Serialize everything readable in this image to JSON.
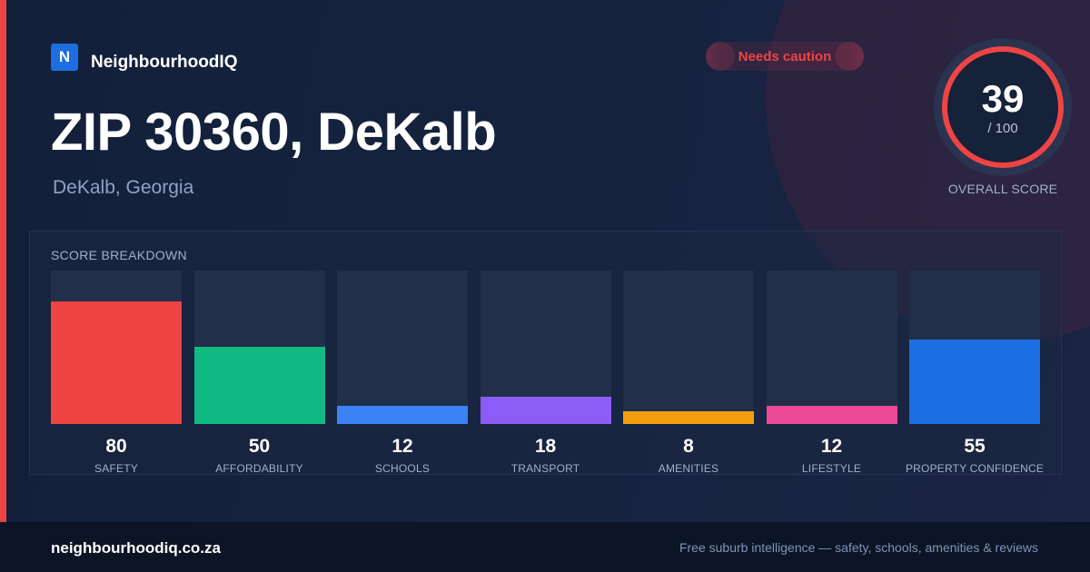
{
  "brand": {
    "logo_letter": "N",
    "name": "NeighbourhoodIQ"
  },
  "status_badge": {
    "label": "Needs caution",
    "color": "#ef4444"
  },
  "header": {
    "title": "ZIP 30360, DeKalb",
    "subtitle": "DeKalb, Georgia"
  },
  "overall_score": {
    "value": "39",
    "max_label": "/ 100",
    "label": "OVERALL SCORE",
    "ring_color": "#ef4444"
  },
  "breakdown": {
    "title": "SCORE BREAKDOWN",
    "max": 100,
    "items": [
      {
        "label": "SAFETY",
        "value": 80,
        "display": "80",
        "color": "#ef4444"
      },
      {
        "label": "AFFORDABILITY",
        "value": 50,
        "display": "50",
        "color": "#10b981"
      },
      {
        "label": "SCHOOLS",
        "value": 12,
        "display": "12",
        "color": "#3b82f6"
      },
      {
        "label": "TRANSPORT",
        "value": 18,
        "display": "18",
        "color": "#8b5cf6"
      },
      {
        "label": "AMENITIES",
        "value": 8,
        "display": "8",
        "color": "#f59e0b"
      },
      {
        "label": "LIFESTYLE",
        "value": 12,
        "display": "12",
        "color": "#ec4899"
      },
      {
        "label": "PROPERTY CONFIDENCE",
        "value": 55,
        "display": "55",
        "color": "#1d6ee0"
      }
    ]
  },
  "footer": {
    "domain": "neighbourhoodiq.co.za",
    "tagline": "Free suburb intelligence — safety, schools, amenities & reviews"
  }
}
